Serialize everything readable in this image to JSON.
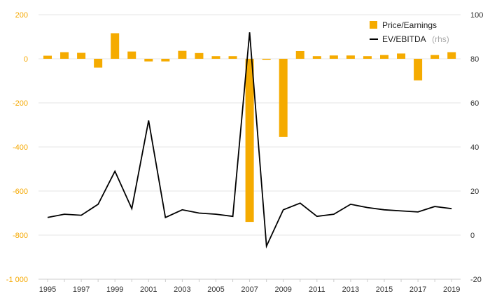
{
  "chart_data": {
    "type": "bar",
    "x": [
      1995,
      1996,
      1997,
      1998,
      1999,
      2000,
      2001,
      2002,
      2003,
      2004,
      2005,
      2006,
      2007,
      2008,
      2009,
      2010,
      2011,
      2012,
      2013,
      2014,
      2015,
      2016,
      2017,
      2018,
      2019
    ],
    "x_tick_labels": [
      "1995",
      "1997",
      "1999",
      "2001",
      "2003",
      "2005",
      "2007",
      "2009",
      "2011",
      "2013",
      "2015",
      "2017",
      "2019"
    ],
    "series": [
      {
        "name": "Price/Earnings",
        "type": "bar",
        "axis": "left",
        "color": "#f5ab00",
        "values": [
          14,
          30,
          27,
          -40,
          116,
          33,
          -12,
          -12,
          36,
          26,
          12,
          12,
          -740,
          -5,
          -355,
          35,
          12,
          15,
          15,
          12,
          17,
          24,
          -98,
          17,
          30
        ]
      },
      {
        "name": "EV/EBITDA",
        "name_suffix": "(rhs)",
        "type": "line",
        "axis": "right",
        "color": "#000000",
        "values": [
          8,
          9.5,
          9,
          14,
          29,
          12,
          52,
          8,
          11.5,
          10,
          9.5,
          8.5,
          92,
          -5,
          11.5,
          14.5,
          8.5,
          9.5,
          14,
          12.5,
          11.5,
          11,
          10.5,
          13,
          12
        ]
      }
    ],
    "y_left": {
      "lim": [
        -1000,
        200
      ],
      "ticks": [
        200,
        0,
        -200,
        -400,
        -600,
        -800,
        -1000
      ],
      "tick_labels": [
        "200",
        "0",
        "-200",
        "-400",
        "-600",
        "-800",
        "-1 000"
      ]
    },
    "y_right": {
      "lim": [
        -20,
        100
      ],
      "ticks": [
        100,
        80,
        60,
        40,
        20,
        0,
        -20
      ],
      "tick_labels": [
        "100",
        "80",
        "60",
        "40",
        "20",
        "0",
        "-20"
      ]
    },
    "grid": "horizontal",
    "legend_position": "top-right"
  }
}
